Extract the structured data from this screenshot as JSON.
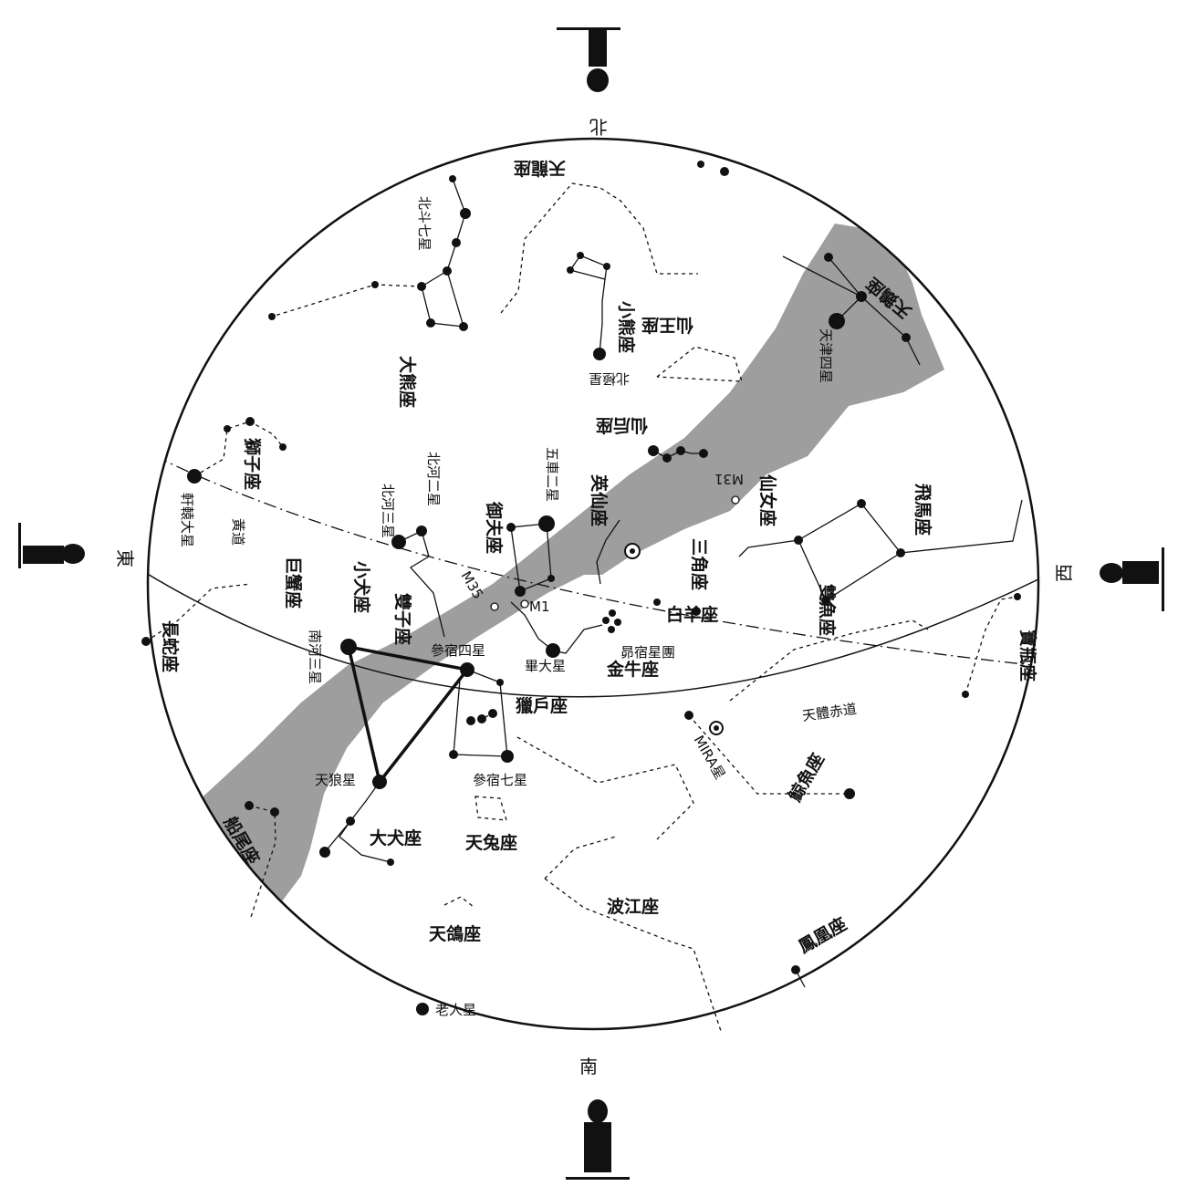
{
  "colors": {
    "milky_way": "#9e9e9e",
    "ink": "#111111",
    "background": "#ffffff"
  },
  "directions": {
    "north": "北",
    "south": "南",
    "east": "東",
    "west": "西"
  },
  "lines": {
    "ecliptic": "黃道",
    "celestial_equator": "天體赤道"
  },
  "constellations": {
    "draco": "天龍座",
    "ursa_minor": "小熊座",
    "cepheus": "仙王座",
    "cygnus": "天鵝座",
    "cassiopeia": "仙后座",
    "perseus": "英仙座",
    "andromeda": "仙女座",
    "pegasus": "飛馬座",
    "triangulum": "三角座",
    "aries": "白羊座",
    "pisces": "雙魚座",
    "aquarius": "寶瓶座",
    "taurus": "金牛座",
    "auriga": "御夫座",
    "ursa_major": "大熊座",
    "leo": "獅子座",
    "cancer": "巨蟹座",
    "gemini": "雙子座",
    "canis_minor": "小犬座",
    "hydra": "長蛇座",
    "orion": "獵戶座",
    "cetus": "鯨魚座",
    "canis_major": "大犬座",
    "lepus": "天兔座",
    "eridanus": "波江座",
    "columba": "天鴿座",
    "puppis": "船尾座",
    "phoenix": "鳳凰座"
  },
  "stars": {
    "polaris": "北極星",
    "big_dipper": "北斗七星",
    "capella": "五車二星",
    "castor": "北河二星",
    "pollux": "北河三星",
    "regulus": "軒轅大星",
    "procyon": "南河三星",
    "betelgeuse": "參宿四星",
    "rigel": "參宿七星",
    "aldebaran": "畢大星",
    "pleiades": "昴宿星團",
    "sirius": "天狼星",
    "mira": "MIRA星",
    "canopus": "老人星",
    "deneb": "天津四星",
    "m31": "M31",
    "m35": "M35",
    "m1": "M1"
  }
}
